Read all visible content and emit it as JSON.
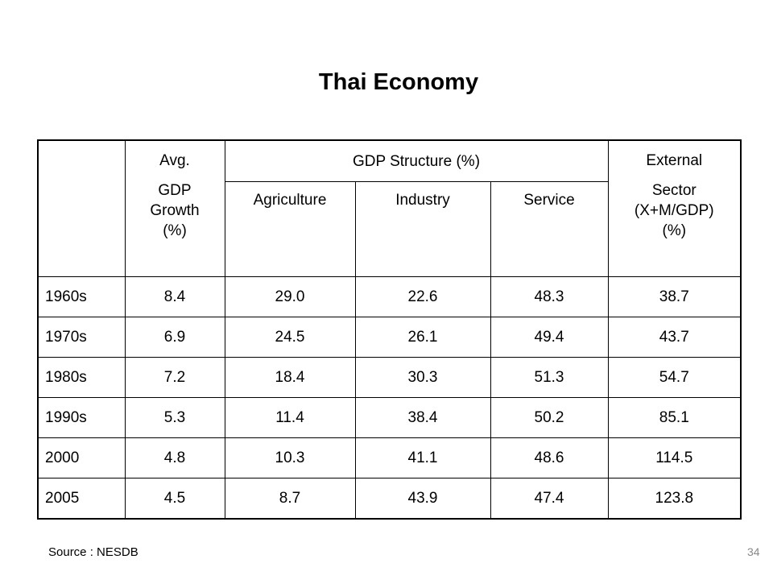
{
  "title": "Thai Economy",
  "table": {
    "header": {
      "avg_line1": "Avg.",
      "avg_line2": "GDP",
      "avg_line3": "Growth",
      "avg_line4": "(%)",
      "gdp_structure": "GDP Structure (%)",
      "agriculture": "Agriculture",
      "industry": "Industry",
      "service": "Service",
      "external_line1": "External",
      "external_line2": "Sector",
      "external_line3": "(X+M/GDP)",
      "external_line4": "(%)"
    },
    "rows": [
      {
        "period": "1960s",
        "growth": "8.4",
        "agriculture": "29.0",
        "industry": "22.6",
        "service": "48.3",
        "external": "38.7"
      },
      {
        "period": "1970s",
        "growth": "6.9",
        "agriculture": "24.5",
        "industry": "26.1",
        "service": "49.4",
        "external": "43.7"
      },
      {
        "period": "1980s",
        "growth": "7.2",
        "agriculture": "18.4",
        "industry": "30.3",
        "service": "51.3",
        "external": "54.7"
      },
      {
        "period": "1990s",
        "growth": "5.3",
        "agriculture": "11.4",
        "industry": "38.4",
        "service": "50.2",
        "external": "85.1"
      },
      {
        "period": "2000",
        "growth": "4.8",
        "agriculture": "10.3",
        "industry": "41.1",
        "service": "48.6",
        "external": "114.5"
      },
      {
        "period": "2005",
        "growth": "4.5",
        "agriculture": "8.7",
        "industry": "43.9",
        "service": "47.4",
        "external": "123.8"
      }
    ]
  },
  "source": "Source : NESDB",
  "page_number": "34"
}
